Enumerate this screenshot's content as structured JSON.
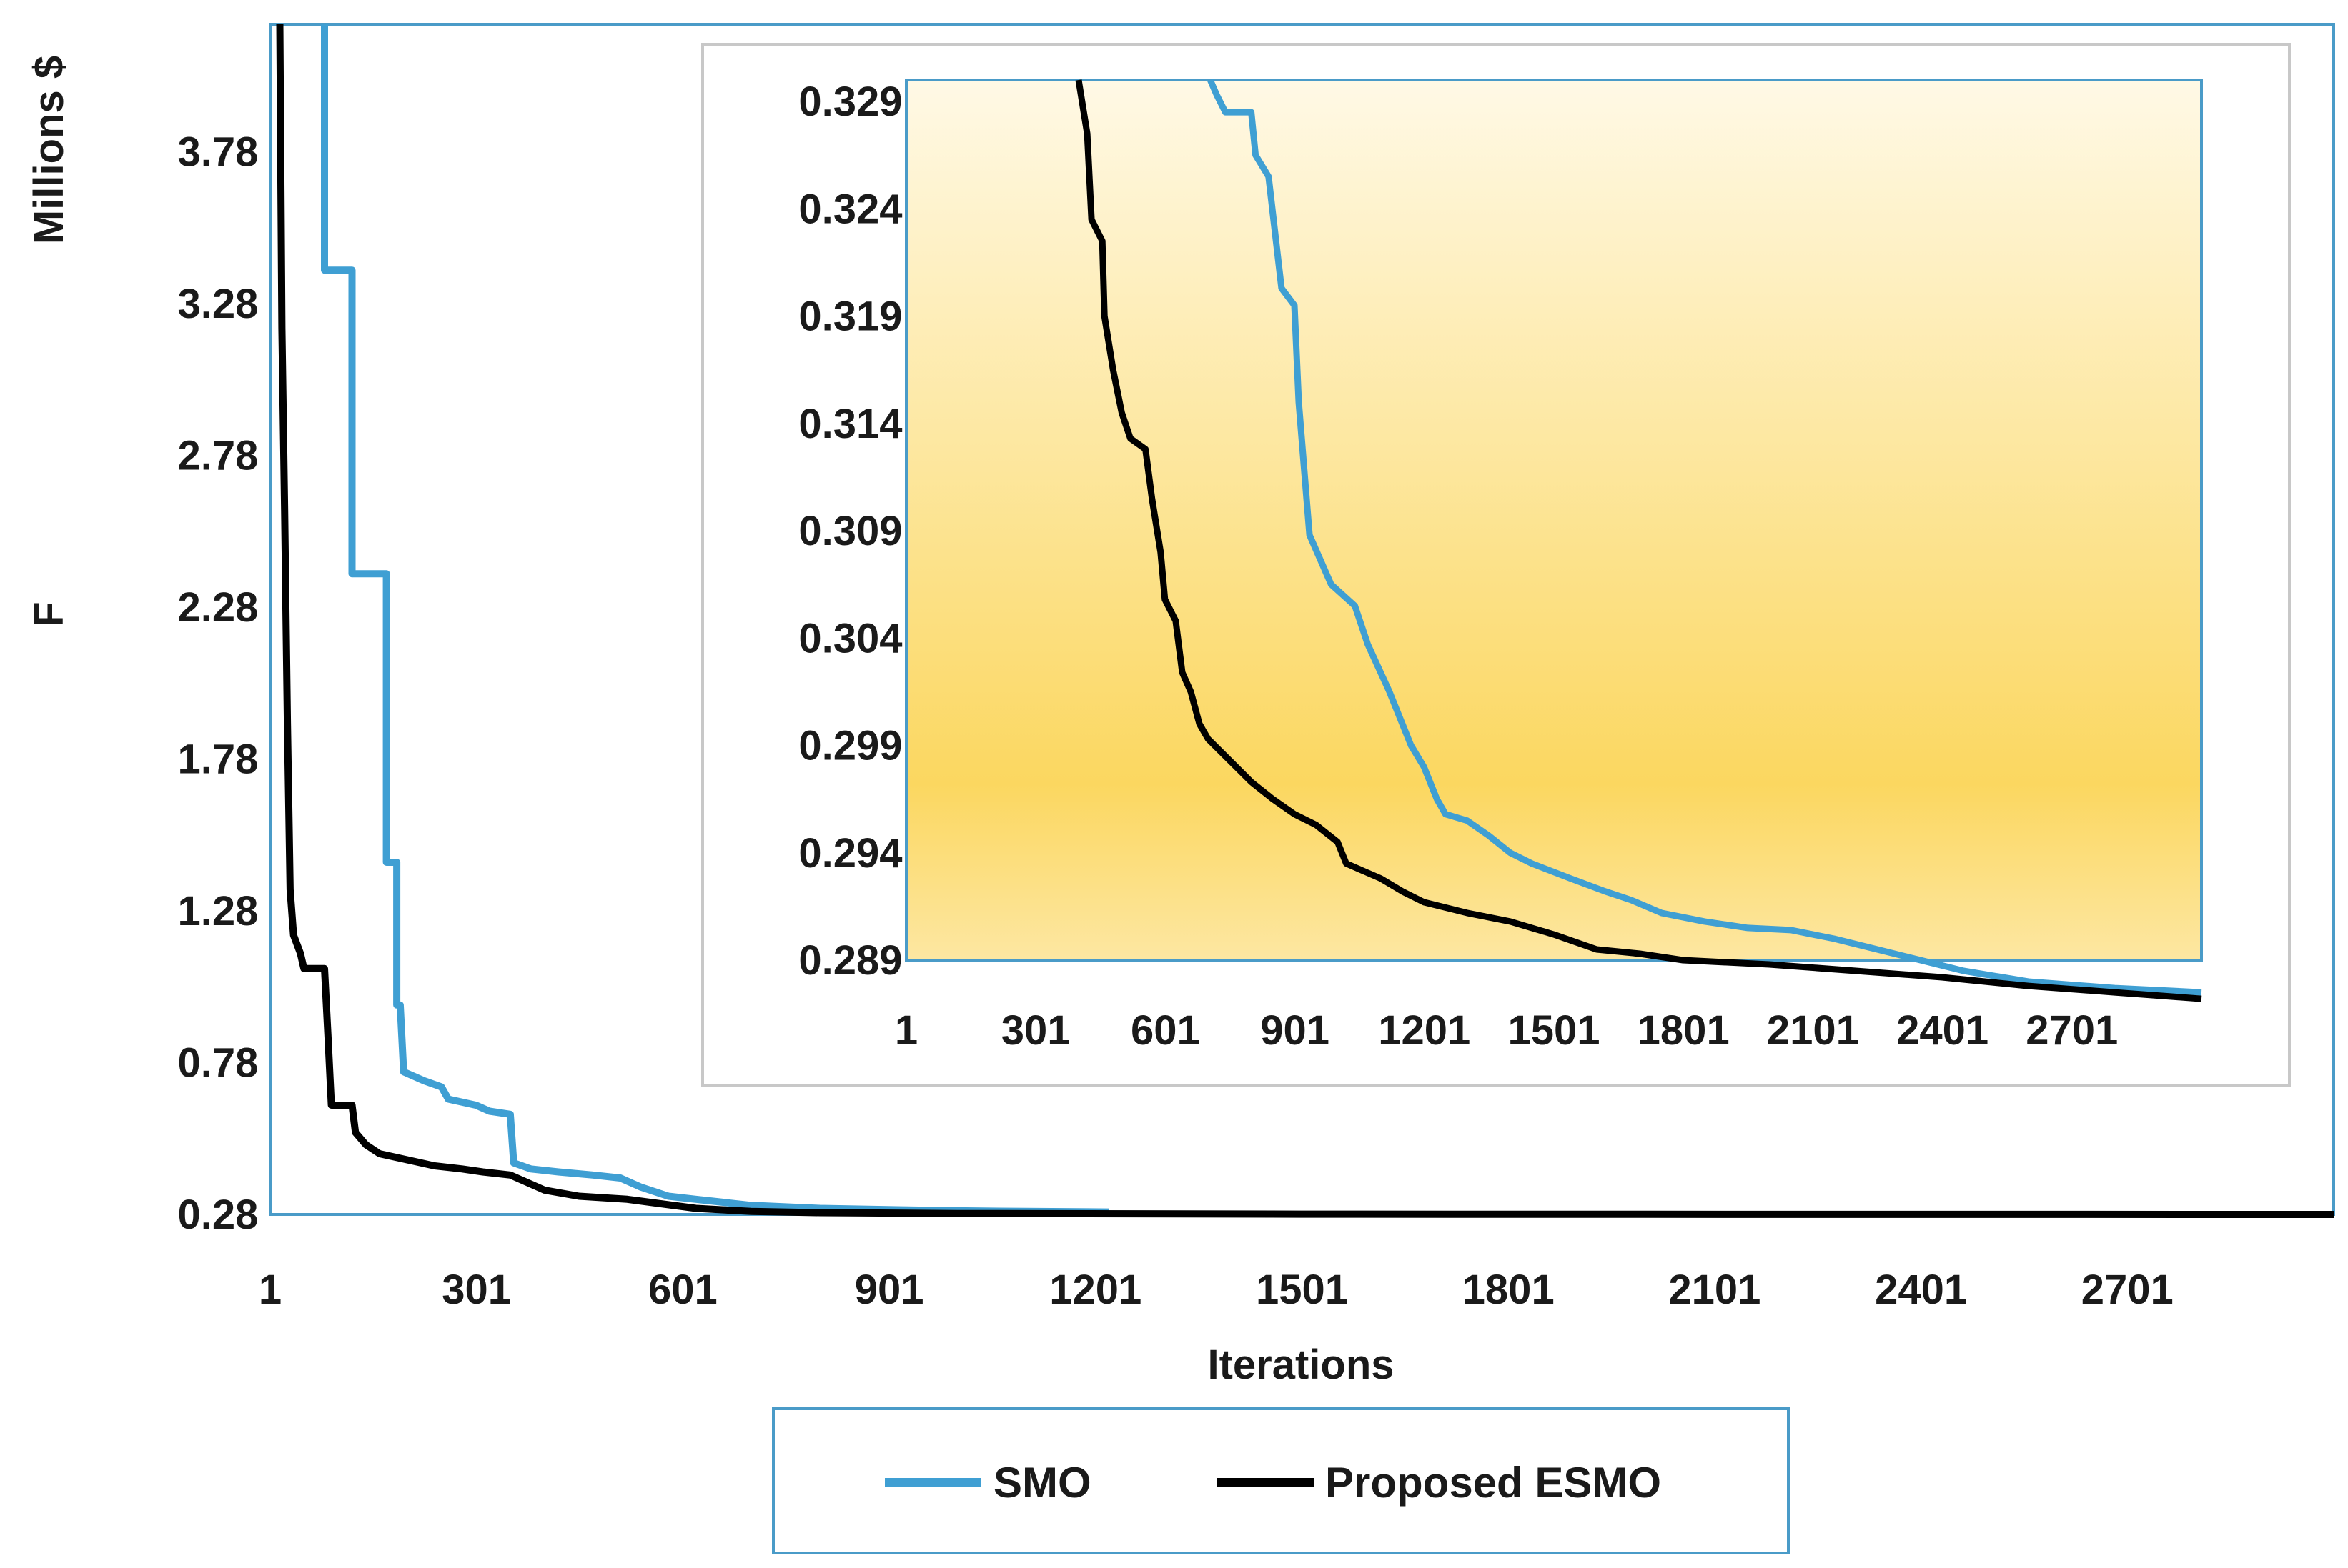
{
  "chart_data": [
    {
      "type": "line",
      "name": "main",
      "xlabel": "Iterations",
      "ylabel": "F",
      "yunit_label": "Millions $",
      "xlim": [
        1,
        3001
      ],
      "ylim": [
        0.28,
        4.2
      ],
      "x_ticks": [
        "1",
        "301",
        "601",
        "901",
        "1201",
        "1501",
        "1801",
        "2101",
        "2401",
        "2701"
      ],
      "x_tick_values": [
        1,
        301,
        601,
        901,
        1201,
        1501,
        1801,
        2101,
        2401,
        2701
      ],
      "y_ticks": [
        "0.28",
        "0.78",
        "1.28",
        "1.78",
        "2.28",
        "2.78",
        "3.28",
        "3.78"
      ],
      "y_tick_values": [
        0.28,
        0.78,
        1.28,
        1.78,
        2.28,
        2.78,
        3.28,
        3.78
      ],
      "series": [
        {
          "name": "SMO",
          "color": "#3f9fd3",
          "points": [
            [
              80,
              4.2
            ],
            [
              80,
              3.39
            ],
            [
              120,
              3.39
            ],
            [
              120,
              2.39
            ],
            [
              170,
              2.39
            ],
            [
              170,
              1.44
            ],
            [
              185,
              1.44
            ],
            [
              185,
              0.97
            ],
            [
              190,
              0.97
            ],
            [
              195,
              0.75
            ],
            [
              225,
              0.72
            ],
            [
              250,
              0.7
            ],
            [
              260,
              0.66
            ],
            [
              300,
              0.64
            ],
            [
              320,
              0.62
            ],
            [
              350,
              0.61
            ],
            [
              355,
              0.45
            ],
            [
              380,
              0.43
            ],
            [
              420,
              0.42
            ],
            [
              470,
              0.41
            ],
            [
              510,
              0.4
            ],
            [
              540,
              0.37
            ],
            [
              580,
              0.34
            ],
            [
              620,
              0.33
            ],
            [
              700,
              0.31
            ],
            [
              800,
              0.3
            ],
            [
              920,
              0.295
            ],
            [
              1000,
              0.292
            ],
            [
              1100,
              0.29
            ],
            [
              1220,
              0.288
            ]
          ]
        },
        {
          "name": "Proposed ESMO",
          "color": "#000000",
          "points": [
            [
              15,
              4.2
            ],
            [
              18,
              3.2
            ],
            [
              22,
              2.6
            ],
            [
              26,
              1.9
            ],
            [
              30,
              1.35
            ],
            [
              35,
              1.2
            ],
            [
              45,
              1.14
            ],
            [
              50,
              1.09
            ],
            [
              80,
              1.09
            ],
            [
              85,
              0.87
            ],
            [
              90,
              0.64
            ],
            [
              120,
              0.64
            ],
            [
              125,
              0.55
            ],
            [
              140,
              0.51
            ],
            [
              160,
              0.48
            ],
            [
              200,
              0.46
            ],
            [
              240,
              0.44
            ],
            [
              280,
              0.43
            ],
            [
              310,
              0.42
            ],
            [
              350,
              0.41
            ],
            [
              400,
              0.36
            ],
            [
              450,
              0.34
            ],
            [
              520,
              0.33
            ],
            [
              620,
              0.3
            ],
            [
              700,
              0.29
            ],
            [
              800,
              0.286
            ],
            [
              1000,
              0.283
            ],
            [
              1500,
              0.281
            ],
            [
              2000,
              0.2805
            ],
            [
              3001,
              0.28
            ]
          ]
        }
      ],
      "legend": {
        "position": "bottom",
        "entries": [
          "SMO",
          "Proposed ESMO"
        ]
      }
    },
    {
      "type": "line",
      "name": "inset",
      "xlim": [
        1,
        3001
      ],
      "ylim": [
        0.289,
        0.33
      ],
      "x_ticks": [
        "1",
        "301",
        "601",
        "901",
        "1201",
        "1501",
        "1801",
        "2101",
        "2401",
        "2701"
      ],
      "x_tick_values": [
        1,
        301,
        601,
        901,
        1201,
        1501,
        1801,
        2101,
        2401,
        2701
      ],
      "y_ticks": [
        "0.289",
        "0.294",
        "0.299",
        "0.304",
        "0.309",
        "0.314",
        "0.319",
        "0.324",
        "0.329"
      ],
      "y_tick_values": [
        0.289,
        0.294,
        0.299,
        0.304,
        0.309,
        0.314,
        0.319,
        0.324,
        0.329
      ],
      "series": [
        {
          "name": "SMO",
          "color": "#3f9fd3",
          "points": [
            [
              705,
              0.33
            ],
            [
              720,
              0.3293
            ],
            [
              740,
              0.3285
            ],
            [
              800,
              0.3285
            ],
            [
              810,
              0.3265
            ],
            [
              840,
              0.3255
            ],
            [
              870,
              0.3203
            ],
            [
              900,
              0.3195
            ],
            [
              910,
              0.315
            ],
            [
              935,
              0.3088
            ],
            [
              985,
              0.3065
            ],
            [
              1040,
              0.3055
            ],
            [
              1070,
              0.3037
            ],
            [
              1120,
              0.3015
            ],
            [
              1170,
              0.299
            ],
            [
              1200,
              0.298
            ],
            [
              1230,
              0.2965
            ],
            [
              1250,
              0.2958
            ],
            [
              1300,
              0.2955
            ],
            [
              1350,
              0.2948
            ],
            [
              1400,
              0.294
            ],
            [
              1450,
              0.2935
            ],
            [
              1540,
              0.2928
            ],
            [
              1620,
              0.2922
            ],
            [
              1680,
              0.2918
            ],
            [
              1750,
              0.2912
            ],
            [
              1850,
              0.2908
            ],
            [
              1950,
              0.2905
            ],
            [
              2050,
              0.2904
            ],
            [
              2150,
              0.29
            ],
            [
              2250,
              0.2895
            ],
            [
              2350,
              0.289
            ],
            [
              2450,
              0.2885
            ],
            [
              2600,
              0.288
            ],
            [
              2800,
              0.2877
            ],
            [
              3001,
              0.2875
            ]
          ]
        },
        {
          "name": "Proposed ESMO",
          "color": "#000000",
          "points": [
            [
              400,
              0.33
            ],
            [
              420,
              0.3275
            ],
            [
              430,
              0.3235
            ],
            [
              455,
              0.3225
            ],
            [
              460,
              0.319
            ],
            [
              480,
              0.3165
            ],
            [
              500,
              0.3145
            ],
            [
              520,
              0.3133
            ],
            [
              555,
              0.3128
            ],
            [
              570,
              0.3105
            ],
            [
              590,
              0.308
            ],
            [
              600,
              0.3058
            ],
            [
              625,
              0.3048
            ],
            [
              640,
              0.3024
            ],
            [
              660,
              0.3015
            ],
            [
              680,
              0.3
            ],
            [
              700,
              0.2993
            ],
            [
              750,
              0.2983
            ],
            [
              800,
              0.2973
            ],
            [
              850,
              0.2965
            ],
            [
              900,
              0.2958
            ],
            [
              950,
              0.2953
            ],
            [
              1000,
              0.2945
            ],
            [
              1020,
              0.2935
            ],
            [
              1100,
              0.2928
            ],
            [
              1150,
              0.2922
            ],
            [
              1200,
              0.2917
            ],
            [
              1300,
              0.2912
            ],
            [
              1400,
              0.2908
            ],
            [
              1500,
              0.2902
            ],
            [
              1600,
              0.2895
            ],
            [
              1700,
              0.2893
            ],
            [
              1800,
              0.289
            ],
            [
              2000,
              0.2888
            ],
            [
              2200,
              0.2885
            ],
            [
              2400,
              0.2882
            ],
            [
              2600,
              0.2878
            ],
            [
              2800,
              0.2875
            ],
            [
              3001,
              0.2872
            ]
          ]
        }
      ]
    }
  ]
}
